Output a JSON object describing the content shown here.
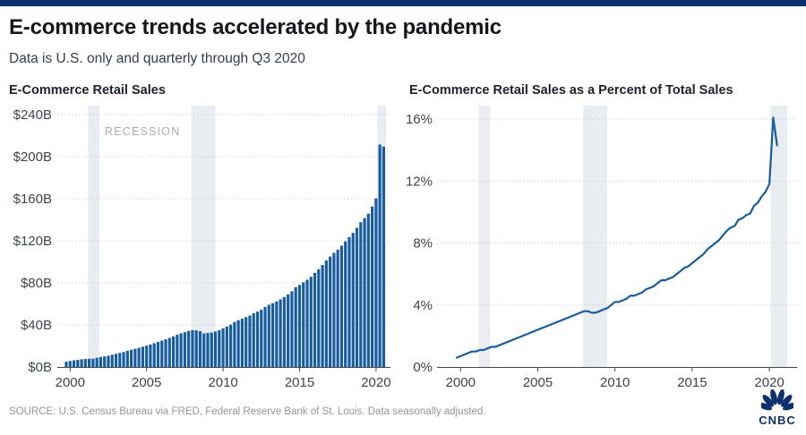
{
  "page": {
    "title": "E-commerce trends accelerated by the pandemic",
    "subtitle": "Data is U.S. only and quarterly through Q3 2020",
    "source": "SOURCE: U.S. Census Bureau via FRED, Federal Reserve Bank of St. Louis. Data seasonally adjusted.",
    "logo_text": "CNBC"
  },
  "colors": {
    "accent_bar": "#0d2f6e",
    "series_blue": "#185d9e",
    "recession_band": "#e9edf2",
    "logo_navy": "#0c2f6d"
  },
  "chart_data": [
    {
      "type": "bar",
      "title": "E-Commerce Retail Sales",
      "x_start": "1999 Q4",
      "x_end": "2020 Q3",
      "frequency": "quarterly",
      "unit": "billions of U.S. dollars",
      "ylim": [
        0,
        240
      ],
      "ytick_labels": [
        "$0B",
        "$40B",
        "$80B",
        "$120B",
        "$160B",
        "$200B",
        "$240B"
      ],
      "xticks": [
        2000,
        2005,
        2010,
        2015,
        2020
      ],
      "annotation": "RECESSION",
      "recessions": [
        {
          "start": 2001.17,
          "end": 2001.92
        },
        {
          "start": 2007.92,
          "end": 2009.5
        },
        {
          "start": 2020.08,
          "end": null
        }
      ],
      "values": [
        5.0,
        5.7,
        6.3,
        6.8,
        7.3,
        7.6,
        7.8,
        7.9,
        8.8,
        9.5,
        10.1,
        10.7,
        11.6,
        12.5,
        13.3,
        14.2,
        15.4,
        16.4,
        17.3,
        18.2,
        19.3,
        20.3,
        21.4,
        22.6,
        23.9,
        25.1,
        26.3,
        27.6,
        29.0,
        30.7,
        32.0,
        33.1,
        34.3,
        35.0,
        34.8,
        34.0,
        31.9,
        32.3,
        32.8,
        33.8,
        35.1,
        36.8,
        38.5,
        40.3,
        42.8,
        44.5,
        45.9,
        47.4,
        49.0,
        51.1,
        52.7,
        54.4,
        57.0,
        59.2,
        60.7,
        62.4,
        64.3,
        66.5,
        69.0,
        72.0,
        75.8,
        78.0,
        80.5,
        83.0,
        85.8,
        89.5,
        93.0,
        97.0,
        101.2,
        105.0,
        108.5,
        111.5,
        115.3,
        119.5,
        123.5,
        127.5,
        132.3,
        137.7,
        141.6,
        145.8,
        152.6,
        160.3,
        211.5,
        209.5
      ]
    },
    {
      "type": "line",
      "title": "E-Commerce Retail Sales as a Percent of Total Sales",
      "x_start": "1999 Q4",
      "x_end": "2020 Q3",
      "frequency": "quarterly",
      "unit": "percent of total retail sales",
      "ylim": [
        0,
        16
      ],
      "ytick_labels": [
        "0%",
        "4%",
        "8%",
        "12%",
        "16%"
      ],
      "xticks": [
        2000,
        2005,
        2010,
        2015,
        2020
      ],
      "annotation": "",
      "recessions": [
        {
          "start": 2001.17,
          "end": 2001.92
        },
        {
          "start": 2007.92,
          "end": 2009.5
        },
        {
          "start": 2020.08,
          "end": null
        }
      ],
      "values": [
        0.6,
        0.7,
        0.8,
        0.9,
        1.0,
        1.0,
        1.1,
        1.1,
        1.2,
        1.3,
        1.3,
        1.4,
        1.5,
        1.6,
        1.7,
        1.8,
        1.9,
        2.0,
        2.1,
        2.2,
        2.3,
        2.4,
        2.5,
        2.6,
        2.7,
        2.8,
        2.9,
        3.0,
        3.1,
        3.2,
        3.3,
        3.4,
        3.5,
        3.6,
        3.6,
        3.5,
        3.5,
        3.6,
        3.7,
        3.8,
        4.0,
        4.2,
        4.2,
        4.3,
        4.4,
        4.6,
        4.6,
        4.7,
        4.8,
        5.0,
        5.1,
        5.2,
        5.4,
        5.6,
        5.6,
        5.7,
        5.8,
        6.0,
        6.2,
        6.4,
        6.5,
        6.7,
        6.9,
        7.1,
        7.3,
        7.6,
        7.8,
        8.0,
        8.2,
        8.5,
        8.8,
        9.0,
        9.1,
        9.5,
        9.6,
        9.8,
        9.9,
        10.4,
        10.6,
        11.0,
        11.3,
        11.8,
        16.1,
        14.3
      ]
    }
  ]
}
